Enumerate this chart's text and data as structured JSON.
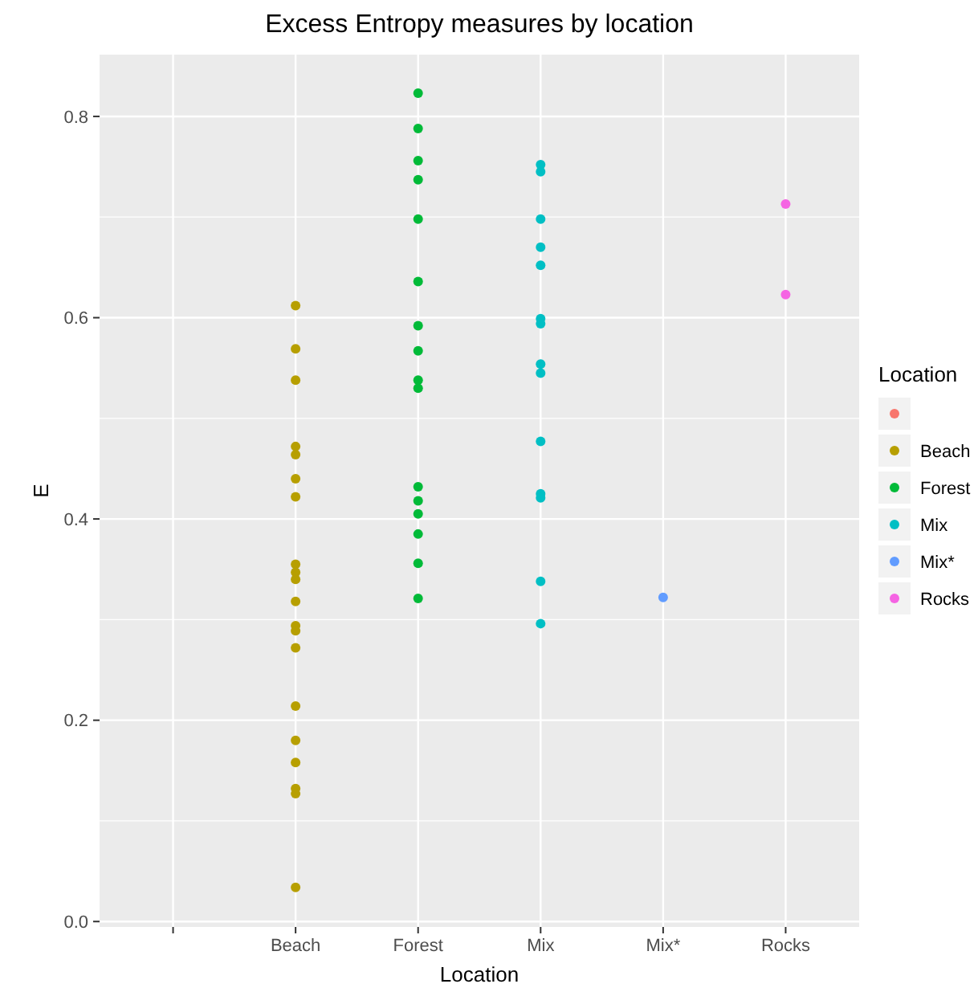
{
  "chart_data": {
    "type": "scatter",
    "title": "Excess Entropy measures by location",
    "xlabel": "Location",
    "ylabel": "E",
    "legend_title": "Location",
    "categories": [
      null,
      "Beach",
      "Forest",
      "Mix",
      "Mix*",
      "Rocks"
    ],
    "ylim": [
      -0.0054,
      0.8614
    ],
    "yticks": [
      {
        "value": 0,
        "label": "0.0"
      },
      0.2,
      0.4,
      0.6,
      0.8
    ],
    "grid": true,
    "legend": "right",
    "marker": "circle",
    "series": [
      {
        "color": "#f8766d",
        "values": [
          null,
          null,
          null,
          null,
          null,
          null
        ]
      },
      {
        "name": "Beach",
        "color": "#b79f00",
        "x": [
          "Beach",
          "Beach",
          "Beach",
          "Beach",
          "Beach",
          "Beach",
          "Beach",
          "Beach",
          "Beach",
          "Beach",
          "Beach",
          "Beach",
          "Beach",
          "Beach",
          "Beach",
          "Beach",
          "Beach",
          "Beach",
          "Beach",
          "Beach"
        ],
        "values": [
          0.612,
          0.569,
          0.538,
          0.472,
          0.464,
          0.44,
          0.422,
          0.355,
          0.347,
          0.34,
          0.318,
          0.294,
          0.289,
          0.272,
          0.214,
          0.18,
          0.158,
          0.132,
          0.127,
          0.034
        ]
      },
      {
        "name": "Forest",
        "color": "#00ba38",
        "x": [
          "Forest",
          "Forest",
          "Forest",
          "Forest",
          "Forest",
          "Forest",
          "Forest",
          "Forest",
          "Forest",
          "Forest",
          "Forest",
          "Forest",
          "Forest",
          "Forest",
          "Forest",
          "Forest"
        ],
        "values": [
          0.823,
          0.788,
          0.756,
          0.737,
          0.698,
          0.636,
          0.592,
          0.567,
          0.538,
          0.53,
          0.432,
          0.418,
          0.405,
          0.385,
          0.356,
          0.321
        ]
      },
      {
        "name": "Mix",
        "color": "#00bfc4",
        "x": [
          "Mix",
          "Mix",
          "Mix",
          "Mix",
          "Mix",
          "Mix",
          "Mix",
          "Mix",
          "Mix",
          "Mix",
          "Mix",
          "Mix",
          "Mix",
          "Mix"
        ],
        "values": [
          0.752,
          0.745,
          0.698,
          0.67,
          0.652,
          0.599,
          0.594,
          0.554,
          0.545,
          0.477,
          0.425,
          0.421,
          0.338,
          0.296
        ]
      },
      {
        "name": "Mix*",
        "color": "#619cff",
        "x": [
          "Mix*"
        ],
        "values": [
          0.322
        ]
      },
      {
        "name": "Rocks",
        "color": "#f564e3",
        "x": [
          "Rocks",
          "Rocks"
        ],
        "values": [
          0.713,
          0.623
        ]
      }
    ]
  }
}
